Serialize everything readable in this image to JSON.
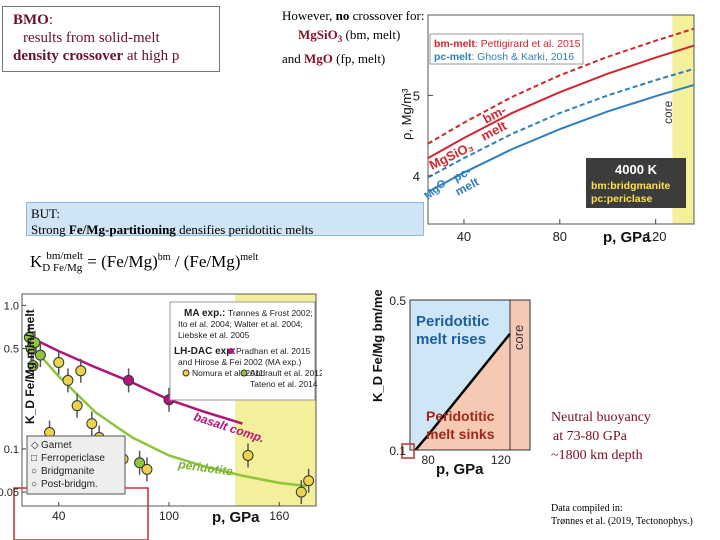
{
  "bmo_box": {
    "line1_bold": "BMO",
    "line1_rest": ":",
    "line2": "results from solid-melt",
    "line3_bold": "density crossover",
    "line3_rest": " at high p"
  },
  "crossover_note": {
    "line1_a": "However, ",
    "line1_b": "no",
    "line1_c": " crossover for:",
    "line2_a": "MgSiO",
    "line2_sub": "3",
    "line2_b": " (bm, melt)",
    "line3_a": "and ",
    "line3_b": "MgO",
    "line3_c": " (fp, melt)"
  },
  "but_box": {
    "line1": "BUT:",
    "line2_a": "Strong ",
    "line2_b": "Fe/Mg-partitioning",
    "line2_c": " densifies peridotitic melts"
  },
  "kd_equation": {
    "k": "K",
    "d_sub": "D Fe/Mg",
    "sup": "bm/melt",
    "eq": " = (Fe/Mg)",
    "bm_sup": "bm",
    "rest": " / (Fe/Mg)",
    "melt_sup": "melt"
  },
  "neutral_note": {
    "line1": "Neutral buoyancy",
    "line2": "at 73-80 GPa",
    "line3": "~1800 km depth"
  },
  "source_note": {
    "line1": "Data compiled in:",
    "line2": "Trønnes et al. (2019, Tectonophys.)"
  },
  "colors": {
    "red": "#d1262f",
    "blue": "#2d7fc0",
    "core_yellow": "#f4ef9a",
    "sink_salmon": "#f6c9b4",
    "rise_blue": "#cfe6f6",
    "magenta": "#b0157a",
    "green": "#8fc43c",
    "dark_red_text": "#7a0e26"
  },
  "chart_data": [
    {
      "type": "line",
      "xlabel": "p, GPa",
      "ylabel": "ρ, Mg/m³",
      "xlim": [
        25,
        136
      ],
      "ylim": [
        3.4,
        6.0
      ],
      "x_ticks": [
        "40",
        "80",
        "120"
      ],
      "y_ticks": [
        "4",
        "5"
      ],
      "legend": [
        {
          "label": "bm-melt",
          "ref": ": Pettigirard et al. 2015",
          "color": "#d1262f"
        },
        {
          "label": "pc-melt",
          "ref": ": Ghosh & Karki, 2016",
          "color": "#2d7fc0"
        }
      ],
      "info_box": {
        "title": "4000 K",
        "line1": "bm:bridgmanite",
        "line2": "pc:periclase"
      },
      "core_label": "core",
      "core_start": 127,
      "series": [
        {
          "name": "bm",
          "color": "#d1262f",
          "dashed": false,
          "x": [
            25,
            40,
            60,
            80,
            100,
            120,
            136
          ],
          "y": [
            4.22,
            4.47,
            4.78,
            5.04,
            5.27,
            5.47,
            5.62
          ]
        },
        {
          "name": "MgSiO3 melt",
          "color": "#d1262f",
          "dashed": true,
          "x": [
            25,
            40,
            60,
            80,
            100,
            120,
            136
          ],
          "y": [
            4.4,
            4.66,
            4.98,
            5.25,
            5.48,
            5.68,
            5.83
          ]
        },
        {
          "name": "pc",
          "color": "#2d7fc0",
          "dashed": false,
          "x": [
            25,
            40,
            60,
            80,
            100,
            120,
            136
          ],
          "y": [
            3.8,
            4.04,
            4.33,
            4.58,
            4.8,
            4.99,
            5.13
          ]
        },
        {
          "name": "MgO melt",
          "color": "#2d7fc0",
          "dashed": true,
          "x": [
            25,
            40,
            60,
            80,
            100,
            120,
            136
          ],
          "y": [
            3.98,
            4.22,
            4.52,
            4.78,
            5.0,
            5.19,
            5.33
          ]
        }
      ],
      "curve_labels": [
        "bm-",
        "melt",
        "MgSiO₃",
        "pc-",
        "melt",
        "MgO"
      ]
    },
    {
      "type": "scatter",
      "xlabel": "p, GPa",
      "ylabel": "K_D Fe/Mg min/melt",
      "xlim": [
        20,
        180
      ],
      "ylim": [
        0.04,
        1.2
      ],
      "x_ticks": [
        "40",
        "100",
        "160"
      ],
      "y_ticks": [
        "1.0",
        "0.5",
        "0.1",
        "0.05"
      ],
      "core_start": 136,
      "legend_exp": {
        "ma_title": "MA exp.:",
        "ma_refs": [
          "Trønnes & Frost 2002;",
          "Ito et al. 2004; Walter et al. 2004;",
          "Liebske et al. 2005"
        ],
        "lh_title": "LH-DAC exp:",
        "lh_refs": [
          "Pradhan et al. 2015",
          "and Hirose & Fei 2002 (MA exp.)",
          "Nomura et al. 2011",
          "Andrault et al. 2012",
          "Tateno et al. 2014"
        ]
      },
      "legend_phase": [
        "Garnet",
        "Ferropericlase",
        "Bridgmanite",
        "Post-bridgm."
      ],
      "trend_labels": [
        "basalt comp.",
        "peridotite"
      ],
      "series": [
        {
          "name": "basalt comp.",
          "color": "#b0157a",
          "x": [
            22,
            40,
            60,
            80,
            100,
            120,
            140
          ],
          "y": [
            0.62,
            0.48,
            0.37,
            0.29,
            0.22,
            0.18,
            0.15
          ]
        },
        {
          "name": "peridotite",
          "color": "#8fc43c",
          "x": [
            22,
            40,
            60,
            80,
            100,
            120,
            140,
            160,
            175
          ],
          "y": [
            0.58,
            0.32,
            0.18,
            0.12,
            0.09,
            0.075,
            0.065,
            0.058,
            0.055
          ]
        }
      ],
      "points": [
        {
          "x": 24,
          "y": 0.6,
          "kind": "green"
        },
        {
          "x": 25,
          "y": 0.5,
          "kind": "green"
        },
        {
          "x": 27,
          "y": 0.55,
          "kind": "green"
        },
        {
          "x": 30,
          "y": 0.45,
          "kind": "green"
        },
        {
          "x": 26,
          "y": 0.38,
          "kind": "green"
        },
        {
          "x": 40,
          "y": 0.4,
          "kind": "yellow"
        },
        {
          "x": 45,
          "y": 0.3,
          "kind": "yellow"
        },
        {
          "x": 52,
          "y": 0.35,
          "kind": "yellow"
        },
        {
          "x": 50,
          "y": 0.2,
          "kind": "yellow"
        },
        {
          "x": 58,
          "y": 0.15,
          "kind": "yellow"
        },
        {
          "x": 62,
          "y": 0.12,
          "kind": "yellow"
        },
        {
          "x": 70,
          "y": 0.1,
          "kind": "yellow"
        },
        {
          "x": 75,
          "y": 0.085,
          "kind": "yellow"
        },
        {
          "x": 88,
          "y": 0.072,
          "kind": "yellow"
        },
        {
          "x": 48,
          "y": 0.09,
          "kind": "yellow"
        },
        {
          "x": 35,
          "y": 0.13,
          "kind": "yellow"
        },
        {
          "x": 84,
          "y": 0.08,
          "kind": "green"
        },
        {
          "x": 100,
          "y": 0.22,
          "kind": "magenta"
        },
        {
          "x": 78,
          "y": 0.3,
          "kind": "magenta"
        },
        {
          "x": 143,
          "y": 0.09,
          "kind": "yellow"
        },
        {
          "x": 172,
          "y": 0.05,
          "kind": "yellow"
        },
        {
          "x": 176,
          "y": 0.06,
          "kind": "yellow"
        }
      ]
    },
    {
      "type": "area",
      "xlabel": "p, GPa",
      "ylabel": "K_D Fe/Mg bm/melt",
      "xlim": [
        70,
        136
      ],
      "ylim": [
        0.1,
        0.5
      ],
      "x_ticks": [
        "80",
        "120"
      ],
      "y_ticks": [
        "0.5",
        "0.1"
      ],
      "regions": [
        "Peridotitic melt rises",
        "Peridotitic melt sinks"
      ],
      "core_label": "core",
      "core_start": 125,
      "series": [
        {
          "name": "neutral buoyancy",
          "color": "#000000",
          "x": [
            73,
            80,
            90,
            100,
            110,
            120,
            125
          ],
          "y": [
            0.1,
            0.14,
            0.2,
            0.26,
            0.32,
            0.38,
            0.41
          ]
        }
      ]
    }
  ]
}
